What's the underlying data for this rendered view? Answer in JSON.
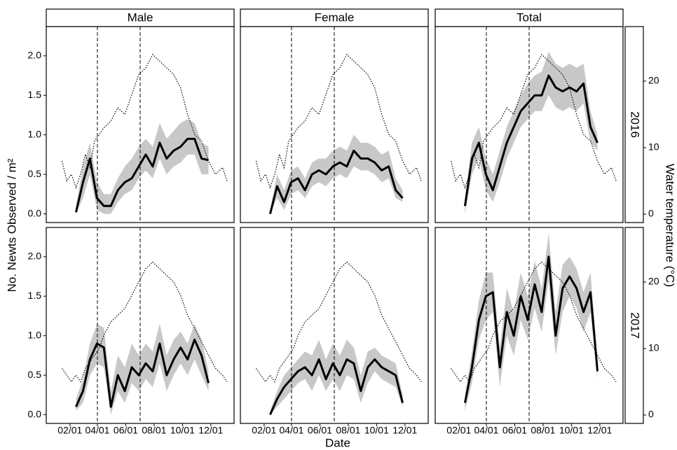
{
  "chart_data": {
    "type": "line",
    "x_label": "Date",
    "y_label": "No. Newts Observed / m²",
    "y2_label": "Water temperature (°C)",
    "columns": [
      "Male",
      "Female",
      "Total"
    ],
    "xlim": [
      -19,
      385
    ],
    "xticks": [
      {
        "value": 32,
        "label": "02/01"
      },
      {
        "value": 91,
        "label": "04/01"
      },
      {
        "value": 152,
        "label": "06/01"
      },
      {
        "value": 213,
        "label": "08/01"
      },
      {
        "value": 274,
        "label": "10/01"
      },
      {
        "value": 335,
        "label": "12/01"
      }
    ],
    "vlines": [
      91,
      183
    ],
    "ylim": [
      -0.11,
      2.37
    ],
    "yticks": [
      {
        "value": 0,
        "label": "0.0"
      },
      {
        "value": 0.5,
        "label": "0.5"
      },
      {
        "value": 1,
        "label": "1.0"
      },
      {
        "value": 1.5,
        "label": "1.5"
      },
      {
        "value": 2,
        "label": "2.0"
      }
    ],
    "y2lim": [
      -1.26,
      28.2
    ],
    "y2ticks": [
      0,
      10,
      20
    ],
    "line_color": "#000000",
    "band_color": "#c8c8c8",
    "rows": [
      {
        "name": "2016",
        "temperature": {
          "x": [
            15,
            25,
            35,
            45,
            55,
            65,
            75,
            85,
            95,
            105,
            120,
            135,
            150,
            165,
            180,
            195,
            210,
            225,
            240,
            255,
            270,
            285,
            300,
            315,
            330,
            345,
            360,
            370
          ],
          "values": [
            8,
            5,
            6,
            4,
            6,
            9,
            7,
            11,
            12,
            13,
            14,
            16,
            15,
            18,
            21,
            22,
            24,
            23,
            22,
            21,
            19,
            15,
            12,
            11,
            8,
            6,
            7,
            5
          ]
        },
        "panels": [
          {
            "x": [
              45,
              60,
              75,
              90,
              105,
              120,
              135,
              150,
              165,
              180,
              195,
              210,
              225,
              240,
              255,
              270,
              285,
              300,
              315,
              330
            ],
            "values": [
              0.02,
              0.4,
              0.7,
              0.2,
              0.1,
              0.1,
              0.3,
              0.4,
              0.45,
              0.6,
              0.75,
              0.6,
              0.9,
              0.7,
              0.8,
              0.85,
              0.95,
              0.95,
              0.7,
              0.68
            ],
            "lower": [
              0,
              0.2,
              0.5,
              0.05,
              0,
              0,
              0.15,
              0.25,
              0.3,
              0.45,
              0.55,
              0.45,
              0.7,
              0.5,
              0.6,
              0.65,
              0.75,
              0.75,
              0.5,
              0.5
            ],
            "upper": [
              0.1,
              0.6,
              0.9,
              0.4,
              0.25,
              0.25,
              0.45,
              0.6,
              0.7,
              0.85,
              0.95,
              0.85,
              1.15,
              0.95,
              1.05,
              1.15,
              1.2,
              1.15,
              0.9,
              0.85
            ]
          },
          {
            "x": [
              45,
              60,
              75,
              90,
              105,
              120,
              135,
              150,
              165,
              180,
              195,
              210,
              225,
              240,
              255,
              270,
              285,
              300,
              315,
              330
            ],
            "values": [
              0,
              0.35,
              0.15,
              0.4,
              0.45,
              0.3,
              0.5,
              0.55,
              0.5,
              0.6,
              0.65,
              0.6,
              0.8,
              0.7,
              0.7,
              0.65,
              0.55,
              0.6,
              0.3,
              0.2
            ],
            "lower": [
              0,
              0.2,
              0.05,
              0.25,
              0.3,
              0.2,
              0.35,
              0.4,
              0.35,
              0.45,
              0.5,
              0.45,
              0.6,
              0.55,
              0.55,
              0.5,
              0.4,
              0.45,
              0.2,
              0.15
            ],
            "upper": [
              0.05,
              0.5,
              0.3,
              0.55,
              0.6,
              0.45,
              0.65,
              0.7,
              0.7,
              0.8,
              0.85,
              0.8,
              1.0,
              0.9,
              0.9,
              0.85,
              0.75,
              0.8,
              0.45,
              0.3
            ]
          },
          {
            "x": [
              45,
              60,
              75,
              90,
              105,
              120,
              135,
              150,
              165,
              180,
              195,
              210,
              225,
              240,
              255,
              270,
              285,
              300,
              315,
              330
            ],
            "values": [
              0.1,
              0.7,
              0.9,
              0.5,
              0.3,
              0.6,
              0.9,
              1.1,
              1.3,
              1.4,
              1.5,
              1.5,
              1.75,
              1.6,
              1.55,
              1.6,
              1.55,
              1.65,
              1.1,
              0.9
            ],
            "lower": [
              0,
              0.5,
              0.7,
              0.3,
              0.15,
              0.4,
              0.7,
              0.9,
              1.1,
              1.2,
              1.3,
              1.3,
              1.5,
              1.35,
              1.3,
              1.35,
              1.3,
              1.4,
              0.9,
              0.8
            ],
            "upper": [
              0.2,
              0.9,
              1.1,
              0.7,
              0.5,
              0.8,
              1.1,
              1.3,
              1.5,
              1.65,
              1.75,
              1.8,
              2.05,
              1.9,
              1.85,
              1.9,
              1.85,
              1.9,
              1.3,
              1.0
            ]
          }
        ]
      },
      {
        "name": "2017",
        "temperature": {
          "x": [
            15,
            25,
            35,
            45,
            55,
            65,
            75,
            85,
            95,
            105,
            120,
            135,
            150,
            165,
            180,
            195,
            210,
            225,
            240,
            255,
            270,
            285,
            300,
            315,
            330,
            345,
            360,
            370
          ],
          "values": [
            7,
            6,
            5,
            6,
            5,
            7,
            8,
            9,
            10,
            12,
            14,
            15,
            16,
            18,
            20,
            22,
            23,
            22,
            21,
            20,
            18,
            15,
            13,
            11,
            9,
            7,
            6,
            5
          ]
        },
        "panels": [
          {
            "x": [
              45,
              60,
              75,
              90,
              105,
              120,
              135,
              150,
              165,
              180,
              195,
              210,
              225,
              240,
              255,
              270,
              285,
              300,
              315,
              330
            ],
            "values": [
              0.1,
              0.3,
              0.7,
              0.9,
              0.85,
              0.1,
              0.5,
              0.3,
              0.6,
              0.5,
              0.65,
              0.55,
              0.9,
              0.5,
              0.7,
              0.85,
              0.7,
              0.95,
              0.75,
              0.4
            ],
            "lower": [
              0.05,
              0.15,
              0.5,
              0.65,
              0.6,
              0,
              0.3,
              0.15,
              0.4,
              0.3,
              0.45,
              0.35,
              0.65,
              0.3,
              0.5,
              0.65,
              0.5,
              0.7,
              0.5,
              0.3
            ],
            "upper": [
              0.2,
              0.45,
              0.9,
              1.15,
              1.1,
              0.3,
              0.75,
              0.6,
              0.9,
              0.75,
              0.9,
              0.8,
              1.15,
              0.75,
              0.95,
              1.05,
              0.9,
              1.15,
              0.95,
              0.55
            ]
          },
          {
            "x": [
              45,
              60,
              75,
              90,
              105,
              120,
              135,
              150,
              165,
              180,
              195,
              210,
              225,
              240,
              255,
              270,
              285,
              300,
              315,
              330
            ],
            "values": [
              0,
              0.2,
              0.35,
              0.45,
              0.55,
              0.6,
              0.5,
              0.7,
              0.45,
              0.65,
              0.5,
              0.7,
              0.65,
              0.3,
              0.6,
              0.7,
              0.6,
              0.55,
              0.5,
              0.15
            ],
            "lower": [
              0,
              0.1,
              0.2,
              0.3,
              0.4,
              0.45,
              0.3,
              0.5,
              0.3,
              0.45,
              0.3,
              0.5,
              0.45,
              0.15,
              0.4,
              0.55,
              0.45,
              0.4,
              0.35,
              0.1
            ],
            "upper": [
              0.05,
              0.3,
              0.5,
              0.6,
              0.7,
              0.8,
              0.75,
              0.95,
              0.7,
              0.9,
              0.75,
              0.95,
              0.85,
              0.5,
              0.8,
              0.85,
              0.75,
              0.7,
              0.65,
              0.25
            ]
          },
          {
            "x": [
              45,
              60,
              75,
              90,
              105,
              120,
              135,
              150,
              165,
              180,
              195,
              210,
              225,
              240,
              255,
              270,
              285,
              300,
              315,
              330
            ],
            "values": [
              0.15,
              0.6,
              1.2,
              1.5,
              1.55,
              0.6,
              1.3,
              1.0,
              1.5,
              1.2,
              1.65,
              1.3,
              2.0,
              1.0,
              1.6,
              1.75,
              1.6,
              1.3,
              1.55,
              0.55
            ],
            "lower": [
              0.05,
              0.4,
              0.95,
              1.2,
              1.3,
              0.35,
              1.0,
              0.75,
              1.2,
              0.95,
              1.35,
              1.05,
              1.7,
              0.75,
              1.3,
              1.5,
              1.35,
              1.05,
              1.3,
              0.45
            ],
            "upper": [
              0.25,
              0.8,
              1.45,
              1.8,
              1.8,
              0.85,
              1.6,
              1.3,
              1.8,
              1.5,
              1.95,
              1.6,
              2.3,
              1.3,
              1.9,
              2.0,
              1.85,
              1.55,
              1.8,
              0.7
            ]
          }
        ]
      }
    ]
  }
}
